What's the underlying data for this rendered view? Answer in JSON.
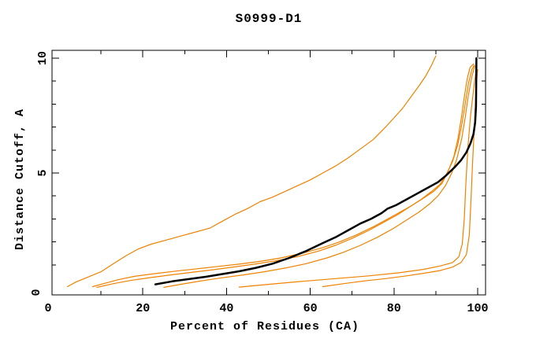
{
  "chart_data": {
    "type": "line",
    "title": "S0999-D1",
    "xlabel": "Percent of Residues (CA)",
    "ylabel": "Distance Cutoff, A",
    "xlim": [
      0,
      100
    ],
    "ylim": [
      0,
      10
    ],
    "x_major_ticks": [
      0,
      20,
      40,
      60,
      80,
      100
    ],
    "x_minor_ticks": [
      10,
      30,
      50,
      70,
      90
    ],
    "y_major_ticks": [
      0,
      5,
      10
    ],
    "y_minor_ticks": [
      1,
      2,
      3,
      4,
      6,
      7,
      8,
      9
    ],
    "grid": false,
    "legend": "none",
    "colors": {
      "model_curve": "#ef8200",
      "highlight_curve": "#000000",
      "axis": "#000000",
      "background": "#ffffff"
    },
    "series": [
      {
        "name": "orange-curve-1",
        "color": "#ef8200",
        "width": 1.2,
        "points": [
          [
            2,
            0.05
          ],
          [
            4,
            0.25
          ],
          [
            6,
            0.4
          ],
          [
            8,
            0.55
          ],
          [
            10,
            0.7
          ],
          [
            13,
            1.05
          ],
          [
            16,
            1.4
          ],
          [
            19,
            1.7
          ],
          [
            22,
            1.9
          ],
          [
            26,
            2.1
          ],
          [
            30,
            2.3
          ],
          [
            33,
            2.45
          ],
          [
            36,
            2.6
          ],
          [
            39,
            2.9
          ],
          [
            42,
            3.2
          ],
          [
            45,
            3.45
          ],
          [
            48,
            3.75
          ],
          [
            51,
            3.95
          ],
          [
            54,
            4.2
          ],
          [
            57,
            4.45
          ],
          [
            60,
            4.7
          ],
          [
            63,
            5.0
          ],
          [
            66,
            5.3
          ],
          [
            69,
            5.65
          ],
          [
            72,
            6.05
          ],
          [
            75,
            6.45
          ],
          [
            78,
            7.0
          ],
          [
            80,
            7.4
          ],
          [
            82,
            7.8
          ],
          [
            84,
            8.3
          ],
          [
            86,
            8.8
          ],
          [
            87.5,
            9.2
          ],
          [
            89,
            9.7
          ],
          [
            90,
            10.1
          ]
        ]
      },
      {
        "name": "orange-curve-2",
        "color": "#ef8200",
        "width": 1.2,
        "points": [
          [
            8,
            0.05
          ],
          [
            11,
            0.2
          ],
          [
            14,
            0.35
          ],
          [
            18,
            0.5
          ],
          [
            23,
            0.62
          ],
          [
            28,
            0.73
          ],
          [
            33,
            0.83
          ],
          [
            38,
            0.93
          ],
          [
            43,
            1.03
          ],
          [
            48,
            1.15
          ],
          [
            53,
            1.3
          ],
          [
            58,
            1.5
          ],
          [
            63,
            1.75
          ],
          [
            67,
            2.0
          ],
          [
            71,
            2.3
          ],
          [
            75,
            2.65
          ],
          [
            78,
            2.95
          ],
          [
            81,
            3.25
          ],
          [
            84,
            3.55
          ],
          [
            87,
            3.9
          ],
          [
            89.5,
            4.2
          ],
          [
            91.5,
            4.55
          ],
          [
            93,
            5.1
          ],
          [
            94.3,
            5.7
          ],
          [
            95.3,
            6.5
          ],
          [
            96.1,
            7.4
          ],
          [
            96.8,
            8.3
          ],
          [
            97.5,
            9.1
          ],
          [
            98.2,
            9.6
          ],
          [
            99,
            9.75
          ]
        ]
      },
      {
        "name": "orange-curve-3",
        "color": "#ef8200",
        "width": 1.2,
        "points": [
          [
            9,
            0.02
          ],
          [
            13,
            0.18
          ],
          [
            17,
            0.32
          ],
          [
            22,
            0.45
          ],
          [
            27,
            0.57
          ],
          [
            32,
            0.68
          ],
          [
            37,
            0.79
          ],
          [
            42,
            0.91
          ],
          [
            47,
            1.04
          ],
          [
            52,
            1.18
          ],
          [
            57,
            1.36
          ],
          [
            62,
            1.6
          ],
          [
            66,
            1.85
          ],
          [
            70,
            2.15
          ],
          [
            74,
            2.5
          ],
          [
            78,
            2.9
          ],
          [
            81,
            3.2
          ],
          [
            84,
            3.55
          ],
          [
            86.5,
            3.85
          ],
          [
            89,
            4.2
          ],
          [
            91,
            4.5
          ],
          [
            92.7,
            5.0
          ],
          [
            94,
            5.5
          ],
          [
            95.2,
            6.2
          ],
          [
            96.2,
            7.1
          ],
          [
            97,
            8.0
          ],
          [
            97.8,
            8.9
          ],
          [
            98.6,
            9.5
          ],
          [
            99.2,
            9.7
          ]
        ]
      },
      {
        "name": "orange-curve-4",
        "color": "#ef8200",
        "width": 1.2,
        "points": [
          [
            25,
            0.02
          ],
          [
            29,
            0.15
          ],
          [
            34,
            0.3
          ],
          [
            39,
            0.44
          ],
          [
            44,
            0.56
          ],
          [
            49,
            0.7
          ],
          [
            54,
            0.86
          ],
          [
            59,
            1.05
          ],
          [
            64,
            1.3
          ],
          [
            68,
            1.55
          ],
          [
            72,
            1.85
          ],
          [
            76,
            2.2
          ],
          [
            80,
            2.6
          ],
          [
            83,
            2.95
          ],
          [
            86,
            3.3
          ],
          [
            88.5,
            3.65
          ],
          [
            90.5,
            4.0
          ],
          [
            92.3,
            4.45
          ],
          [
            93.8,
            5.0
          ],
          [
            95,
            5.6
          ],
          [
            96.2,
            6.5
          ],
          [
            97,
            7.4
          ],
          [
            97.8,
            8.4
          ],
          [
            98.6,
            9.2
          ],
          [
            99.3,
            9.65
          ]
        ]
      },
      {
        "name": "orange-curve-5",
        "color": "#ef8200",
        "width": 1.2,
        "points": [
          [
            43,
            0.03
          ],
          [
            50,
            0.15
          ],
          [
            58,
            0.28
          ],
          [
            66,
            0.4
          ],
          [
            74,
            0.52
          ],
          [
            81,
            0.65
          ],
          [
            87,
            0.8
          ],
          [
            91,
            0.95
          ],
          [
            94,
            1.1
          ],
          [
            95.5,
            1.35
          ],
          [
            96.3,
            1.9
          ],
          [
            96.8,
            3.0
          ],
          [
            97.2,
            4.6
          ],
          [
            97.7,
            6.2
          ],
          [
            98.3,
            7.5
          ],
          [
            99,
            8.6
          ],
          [
            99.5,
            9.3
          ],
          [
            99.8,
            9.6
          ]
        ]
      },
      {
        "name": "orange-curve-6",
        "color": "#ef8200",
        "width": 1.2,
        "points": [
          [
            63,
            0.05
          ],
          [
            68,
            0.18
          ],
          [
            73,
            0.3
          ],
          [
            78,
            0.4
          ],
          [
            83,
            0.52
          ],
          [
            87,
            0.63
          ],
          [
            91,
            0.75
          ],
          [
            94,
            0.9
          ],
          [
            96,
            1.1
          ],
          [
            97.3,
            1.45
          ],
          [
            98,
            2.3
          ],
          [
            98.4,
            3.8
          ],
          [
            98.8,
            5.5
          ],
          [
            99.2,
            7.0
          ],
          [
            99.5,
            8.2
          ],
          [
            99.8,
            9.1
          ],
          [
            100,
            9.5
          ]
        ]
      },
      {
        "name": "black-curve",
        "color": "#000000",
        "width": 2.5,
        "points": [
          [
            23,
            0.15
          ],
          [
            27,
            0.28
          ],
          [
            31,
            0.38
          ],
          [
            35,
            0.48
          ],
          [
            39,
            0.6
          ],
          [
            43,
            0.72
          ],
          [
            47,
            0.87
          ],
          [
            51,
            1.05
          ],
          [
            55,
            1.3
          ],
          [
            59,
            1.6
          ],
          [
            63,
            1.95
          ],
          [
            66,
            2.2
          ],
          [
            69,
            2.5
          ],
          [
            72,
            2.8
          ],
          [
            74.5,
            3.0
          ],
          [
            77,
            3.25
          ],
          [
            78.5,
            3.45
          ],
          [
            80.5,
            3.6
          ],
          [
            83,
            3.85
          ],
          [
            85.5,
            4.1
          ],
          [
            88,
            4.35
          ],
          [
            90.5,
            4.6
          ],
          [
            92.5,
            4.9
          ],
          [
            94.5,
            5.25
          ],
          [
            96,
            5.55
          ],
          [
            97.3,
            5.9
          ],
          [
            98.3,
            6.3
          ],
          [
            99,
            6.7
          ],
          [
            99.4,
            7.2
          ],
          [
            99.6,
            7.9
          ],
          [
            99.65,
            8.7
          ],
          [
            99.7,
            10.0
          ]
        ]
      }
    ]
  }
}
